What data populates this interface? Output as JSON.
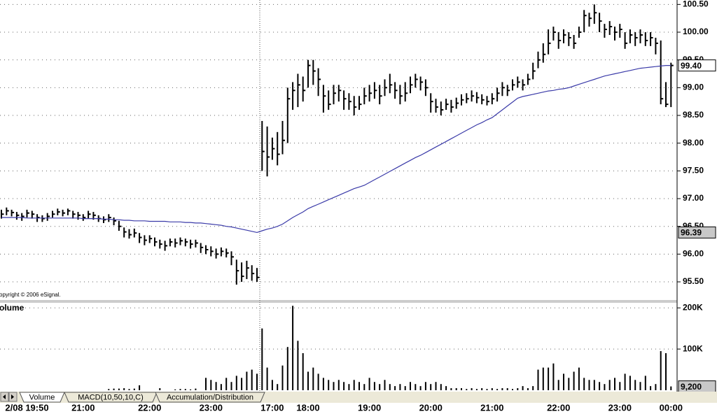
{
  "chart_data": [
    {
      "type": "ohlc",
      "annotation": "opyright © 2006 eSignal.",
      "color": "#000000",
      "grid": true,
      "ylim": [
        95.16,
        100.58
      ],
      "yticks": [
        {
          "value": 95.5,
          "label": "95.50"
        },
        {
          "value": 96,
          "label": "96.00"
        },
        {
          "value": 96.5,
          "label": "96.50"
        },
        {
          "value": 97,
          "label": "97.00"
        },
        {
          "value": 97.5,
          "label": "97.50"
        },
        {
          "value": 98,
          "label": "98.00"
        },
        {
          "value": 98.5,
          "label": "98.50"
        },
        {
          "value": 99,
          "label": "99.00"
        },
        {
          "value": 99.5,
          "label": "99.50"
        },
        {
          "value": 100,
          "label": "100.00"
        },
        {
          "value": 100.5,
          "label": "100.50"
        }
      ],
      "value_markers": [
        {
          "value": 96.39,
          "color": "#c8c8c8"
        },
        {
          "value": 99.4,
          "label": "99.40",
          "color": "#ffffff"
        }
      ],
      "high": [
        96.8,
        96.84,
        96.8,
        96.76,
        96.74,
        96.8,
        96.78,
        96.72,
        96.7,
        96.74,
        96.78,
        96.82,
        96.8,
        96.82,
        96.78,
        96.76,
        96.72,
        96.78,
        96.76,
        96.7,
        96.68,
        96.72,
        96.66,
        96.6,
        96.48,
        96.45,
        96.46,
        96.38,
        96.34,
        96.34,
        96.3,
        96.26,
        96.24,
        96.28,
        96.28,
        96.3,
        96.28,
        96.26,
        96.26,
        96.2,
        96.16,
        96.14,
        96.1,
        96.12,
        96.1,
        96.05,
        95.9,
        95.85,
        95.88,
        95.8,
        95.75,
        98.4,
        98.3,
        98.1,
        98.2,
        98.4,
        99.0,
        99.1,
        99.25,
        99.2,
        99.5,
        99.5,
        99.35,
        99.05,
        98.95,
        99.05,
        99.05,
        98.95,
        98.9,
        98.85,
        98.85,
        99.0,
        99.05,
        99.1,
        99.05,
        99.15,
        99.25,
        99.1,
        99.05,
        99.1,
        99.2,
        99.25,
        99.2,
        99.15,
        98.9,
        98.8,
        98.75,
        98.8,
        98.78,
        98.82,
        98.88,
        98.9,
        98.95,
        98.92,
        98.88,
        98.85,
        98.9,
        99.0,
        99.1,
        99.05,
        99.15,
        99.2,
        99.15,
        99.25,
        99.45,
        99.65,
        99.8,
        100.05,
        100.1,
        100.0,
        100.05,
        100.0,
        99.95,
        100.1,
        100.4,
        100.35,
        100.5,
        100.35,
        100.15,
        100.2,
        100.1,
        100.15,
        100.0,
        100.05,
        100.0,
        100.05,
        100.0,
        100.0,
        99.9,
        99.85,
        99.1,
        99.45
      ],
      "low": [
        96.64,
        96.7,
        96.68,
        96.62,
        96.6,
        96.66,
        96.64,
        96.58,
        96.58,
        96.6,
        96.66,
        96.7,
        96.68,
        96.7,
        96.64,
        96.62,
        96.6,
        96.64,
        96.62,
        96.58,
        96.56,
        96.58,
        96.52,
        96.42,
        96.3,
        96.28,
        96.3,
        96.2,
        96.16,
        96.2,
        96.14,
        96.1,
        96.06,
        96.14,
        96.12,
        96.16,
        96.14,
        96.1,
        96.12,
        96.02,
        96.0,
        95.96,
        95.92,
        95.96,
        95.94,
        95.8,
        95.45,
        95.5,
        95.55,
        95.52,
        95.5,
        97.5,
        97.4,
        97.7,
        97.6,
        97.8,
        98.0,
        98.6,
        98.65,
        98.75,
        99.0,
        99.05,
        98.85,
        98.55,
        98.6,
        98.7,
        98.75,
        98.6,
        98.6,
        98.5,
        98.6,
        98.7,
        98.75,
        98.8,
        98.7,
        98.85,
        98.9,
        98.8,
        98.7,
        98.75,
        98.9,
        99.0,
        98.95,
        98.85,
        98.55,
        98.55,
        98.5,
        98.6,
        98.55,
        98.62,
        98.68,
        98.72,
        98.75,
        98.72,
        98.7,
        98.68,
        98.7,
        98.75,
        98.85,
        98.85,
        98.95,
        99.0,
        98.95,
        99.05,
        99.15,
        99.35,
        99.45,
        99.6,
        99.85,
        99.7,
        99.8,
        99.75,
        99.7,
        99.9,
        100.0,
        100.1,
        100.15,
        100.0,
        99.9,
        99.95,
        99.85,
        99.9,
        99.7,
        99.8,
        99.75,
        99.8,
        99.75,
        99.75,
        99.6,
        98.7,
        98.65,
        98.65
      ],
      "close": [
        96.72,
        96.78,
        96.75,
        96.7,
        96.68,
        96.74,
        96.72,
        96.66,
        96.64,
        96.68,
        96.72,
        96.76,
        96.74,
        96.78,
        96.72,
        96.7,
        96.66,
        96.72,
        96.7,
        96.64,
        96.62,
        96.66,
        96.6,
        96.5,
        96.4,
        96.35,
        96.38,
        96.3,
        96.25,
        96.28,
        96.22,
        96.18,
        96.15,
        96.22,
        96.2,
        96.24,
        96.22,
        96.18,
        96.2,
        96.12,
        96.08,
        96.05,
        96.0,
        96.05,
        96.02,
        95.95,
        95.7,
        95.6,
        95.75,
        95.65,
        95.58,
        97.85,
        97.75,
        97.9,
        97.8,
        98.05,
        98.8,
        98.95,
        99.05,
        98.95,
        99.4,
        99.3,
        99.15,
        98.85,
        98.7,
        98.9,
        98.95,
        98.8,
        98.75,
        98.65,
        98.7,
        98.85,
        98.9,
        98.95,
        98.85,
        99.0,
        99.05,
        98.95,
        98.85,
        98.9,
        99.05,
        99.15,
        99.1,
        99.0,
        98.75,
        98.65,
        98.6,
        98.7,
        98.65,
        98.72,
        98.78,
        98.8,
        98.85,
        98.82,
        98.78,
        98.75,
        98.8,
        98.9,
        99.0,
        98.95,
        99.05,
        99.1,
        99.05,
        99.15,
        99.3,
        99.5,
        99.6,
        99.8,
        100.0,
        99.85,
        99.95,
        99.9,
        99.8,
        100.0,
        100.3,
        100.25,
        100.35,
        100.2,
        100.05,
        100.1,
        100.0,
        100.05,
        99.8,
        99.95,
        99.9,
        99.95,
        99.85,
        99.9,
        99.8,
        98.8,
        98.7,
        99.4
      ],
      "moving_average": {
        "color": "#3a3aa8",
        "values": [
          96.66,
          96.66,
          96.66,
          96.66,
          96.66,
          96.65,
          96.65,
          96.65,
          96.65,
          96.65,
          96.65,
          96.65,
          96.65,
          96.65,
          96.65,
          96.65,
          96.64,
          96.64,
          96.64,
          96.64,
          96.63,
          96.63,
          96.62,
          96.62,
          96.61,
          96.61,
          96.6,
          96.6,
          96.6,
          96.59,
          96.59,
          96.59,
          96.59,
          96.58,
          96.58,
          96.58,
          96.57,
          96.57,
          96.56,
          96.56,
          96.55,
          96.54,
          96.53,
          96.52,
          96.5,
          96.49,
          96.47,
          96.45,
          96.43,
          96.41,
          96.39,
          96.42,
          96.45,
          96.47,
          96.5,
          96.54,
          96.6,
          96.66,
          96.71,
          96.76,
          96.82,
          96.86,
          96.9,
          96.94,
          96.98,
          97.02,
          97.06,
          97.1,
          97.14,
          97.18,
          97.21,
          97.24,
          97.29,
          97.34,
          97.39,
          97.44,
          97.49,
          97.54,
          97.59,
          97.64,
          97.69,
          97.74,
          97.78,
          97.83,
          97.88,
          97.93,
          97.98,
          98.03,
          98.08,
          98.13,
          98.18,
          98.23,
          98.28,
          98.33,
          98.37,
          98.42,
          98.46,
          98.53,
          98.6,
          98.67,
          98.74,
          98.81,
          98.84,
          98.86,
          98.88,
          98.9,
          98.92,
          98.94,
          98.95,
          98.97,
          98.98,
          99.0,
          99.03,
          99.06,
          99.09,
          99.12,
          99.15,
          99.18,
          99.21,
          99.23,
          99.25,
          99.27,
          99.29,
          99.31,
          99.33,
          99.35,
          99.36,
          99.37,
          99.38,
          99.39,
          99.4,
          99.4
        ]
      }
    },
    {
      "type": "bar",
      "title": "olume",
      "color": "#000000",
      "grid": true,
      "ylim": [
        0,
        214000
      ],
      "yticks": [
        {
          "value": 100000,
          "label": "100K"
        },
        {
          "value": 200000,
          "label": "200K"
        }
      ],
      "value_markers": [
        {
          "value": 9200,
          "label": "9,200",
          "color": "#c8c8c8"
        }
      ],
      "categories": [
        null,
        null,
        null,
        null,
        null,
        "2/08 19:50",
        null,
        null,
        null,
        null,
        null,
        null,
        null,
        null,
        null,
        null,
        "21:00",
        null,
        null,
        null,
        null,
        null,
        null,
        null,
        null,
        null,
        null,
        null,
        null,
        "22:00",
        null,
        null,
        null,
        null,
        null,
        null,
        null,
        null,
        null,
        null,
        null,
        "23:00",
        null,
        null,
        null,
        null,
        null,
        null,
        null,
        null,
        null,
        null,
        null,
        "17:00",
        null,
        null,
        null,
        null,
        null,
        null,
        "18:00",
        null,
        null,
        null,
        null,
        null,
        null,
        null,
        null,
        null,
        null,
        null,
        "19:00",
        null,
        null,
        null,
        null,
        null,
        null,
        null,
        null,
        null,
        null,
        null,
        "20:00",
        null,
        null,
        null,
        null,
        null,
        null,
        null,
        null,
        null,
        null,
        null,
        "21:00",
        null,
        null,
        null,
        null,
        null,
        null,
        null,
        null,
        null,
        null,
        null,
        null,
        "22:00",
        null,
        null,
        null,
        null,
        null,
        null,
        null,
        null,
        null,
        null,
        null,
        "23:00",
        null,
        null,
        null,
        null,
        null,
        null,
        null,
        null,
        null,
        "00:00"
      ],
      "values": [
        0,
        0,
        0,
        0,
        0,
        0,
        0,
        0,
        0,
        0,
        0,
        0,
        0,
        0,
        0,
        0,
        0,
        0,
        0,
        0,
        0,
        3000,
        4000,
        4000,
        5000,
        3000,
        4000,
        12000,
        0,
        0,
        0,
        5000,
        0,
        0,
        2000,
        3000,
        3000,
        2000,
        4000,
        0,
        30000,
        25000,
        20000,
        15000,
        30000,
        20000,
        35000,
        30000,
        45000,
        50000,
        40000,
        150000,
        55000,
        25000,
        15000,
        60000,
        105000,
        205000,
        120000,
        90000,
        45000,
        55000,
        40000,
        30000,
        25000,
        20000,
        25000,
        20000,
        15000,
        25000,
        20000,
        15000,
        30000,
        20000,
        15000,
        25000,
        15000,
        10000,
        15000,
        10000,
        20000,
        15000,
        10000,
        20000,
        15000,
        20000,
        15000,
        10000,
        5000,
        5000,
        5000,
        3000,
        5000,
        3000,
        5000,
        3000,
        5000,
        3000,
        5000,
        5000,
        3000,
        5000,
        10000,
        5000,
        10000,
        50000,
        55000,
        55000,
        65000,
        25000,
        40000,
        30000,
        45000,
        55000,
        30000,
        25000,
        25000,
        20000,
        15000,
        25000,
        30000,
        20000,
        40000,
        35000,
        25000,
        20000,
        35000,
        10000,
        15000,
        95000,
        90000,
        9200
      ]
    }
  ],
  "tabs": [
    "Volume",
    "MACD(10,50,10,C)",
    "Accumulation/Distribution"
  ]
}
